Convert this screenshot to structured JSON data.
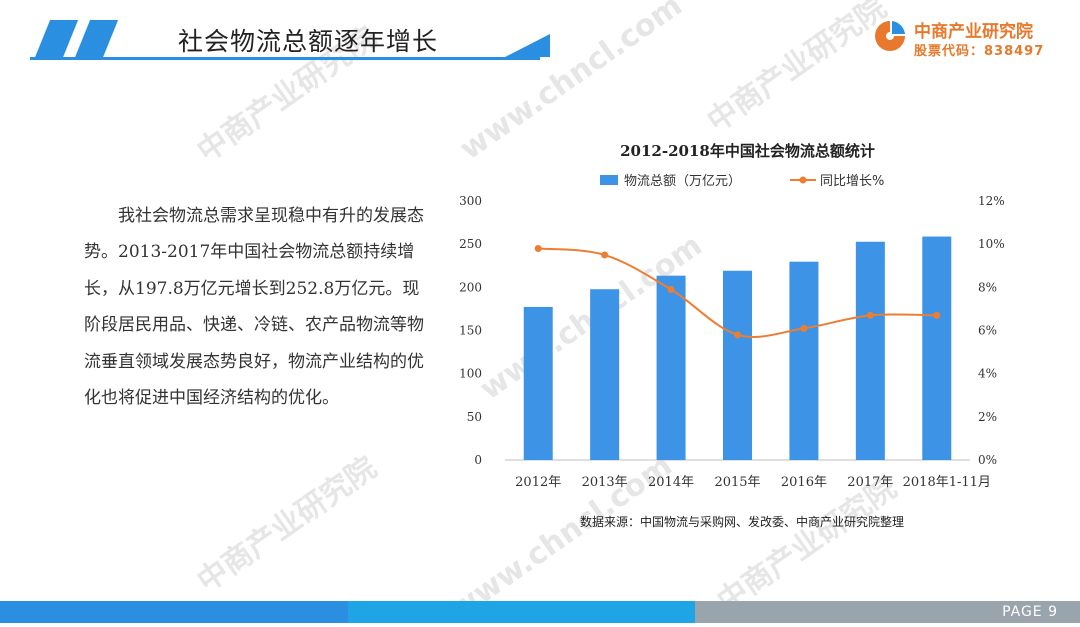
{
  "header": {
    "title": "社会物流总额逐年增长"
  },
  "logo": {
    "name": "中商产业研究院",
    "code": "股票代码：838497"
  },
  "body_text": "我社会物流总需求呈现稳中有升的发展态势。2013-2017年中国社会物流总额持续增长，从197.8万亿元增长到252.8万亿元。现阶段居民用品、快递、冷链、农产品物流等物流垂直领域发展态势良好，物流产业结构的优化也将促进中国经济结构的优化。",
  "watermark": [
    "中商产业研究院",
    "www.chncl.com"
  ],
  "source": "数据来源：中国物流与采购网、发改委、中商产业研究院整理",
  "footer": {
    "page": "PAGE  9"
  },
  "colors": {
    "accent": "#2a8fe0",
    "bar": "#3d94e6",
    "line": "#ed7d31",
    "logo": "#e8792c"
  },
  "chart_data": {
    "type": "bar",
    "title": "2012-2018年中国社会物流总额统计",
    "categories": [
      "2012年",
      "2013年",
      "2014年",
      "2015年",
      "2016年",
      "2017年",
      "2018年1-11月"
    ],
    "series": [
      {
        "name": "物流总额（万亿元）",
        "type": "bar",
        "axis": "left",
        "values": [
          177.3,
          197.8,
          213.5,
          219.2,
          229.7,
          252.8,
          258.8
        ]
      },
      {
        "name": "同比增长%",
        "type": "line",
        "axis": "right",
        "values": [
          9.8,
          9.5,
          7.9,
          5.8,
          6.1,
          6.7,
          6.7
        ]
      }
    ],
    "y_left": {
      "range": [
        0,
        300
      ],
      "ticks": [
        "0",
        "50",
        "100",
        "150",
        "200",
        "250",
        "300"
      ]
    },
    "y_right": {
      "range": [
        0,
        12
      ],
      "ticks": [
        "0%",
        "2%",
        "4%",
        "6%",
        "8%",
        "10%",
        "12%"
      ]
    },
    "legend": "top",
    "grid": false
  }
}
